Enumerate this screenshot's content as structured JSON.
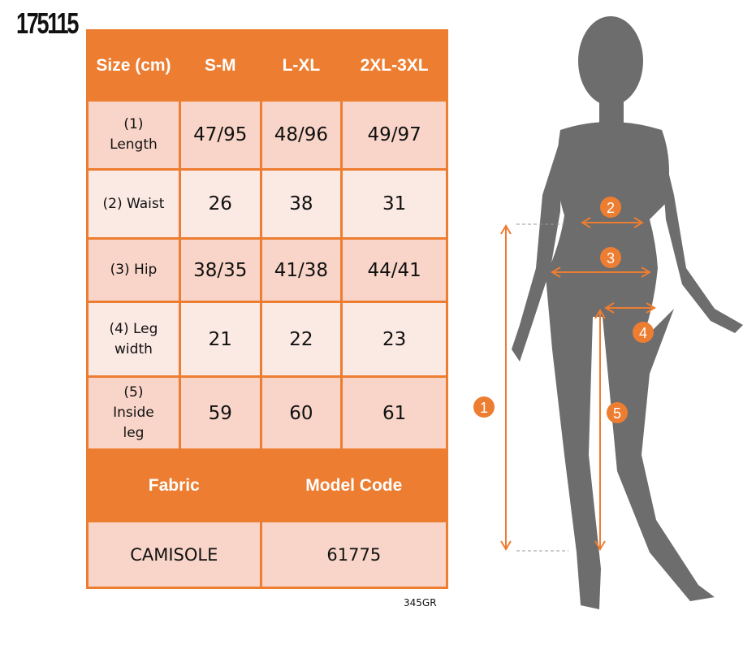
{
  "product_code": "175115",
  "footer_code": "345GR",
  "colors": {
    "accent": "#ed7d31",
    "row_dark": "#f8d5c8",
    "row_light": "#fbe9e3",
    "silhouette": "#6d6d6d"
  },
  "table": {
    "headers": [
      "Size (cm)",
      "S-M",
      "L-XL",
      "2XL-3XL"
    ],
    "rows": [
      {
        "label": "(1) Length",
        "values": [
          "47/95",
          "48/96",
          "49/97"
        ]
      },
      {
        "label": "(2) Waist",
        "values": [
          "26",
          "38",
          "31"
        ]
      },
      {
        "label": "(3) Hip",
        "values": [
          "38/35",
          "41/38",
          "44/41"
        ]
      },
      {
        "label": "(4) Leg width",
        "values": [
          "21",
          "22",
          "23"
        ]
      },
      {
        "label": "(5) Inside leg",
        "values": [
          "59",
          "60",
          "61"
        ]
      }
    ],
    "info_headers": [
      "Fabric",
      "Model Code"
    ],
    "info_values": [
      "CAMISOLE",
      "61775"
    ]
  },
  "figure": {
    "markers": [
      "1",
      "2",
      "3",
      "4",
      "5"
    ]
  }
}
